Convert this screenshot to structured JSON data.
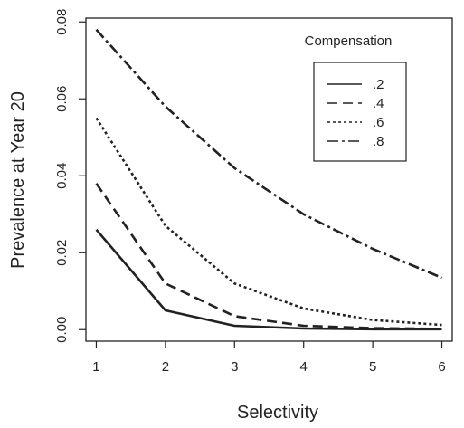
{
  "chart_data": {
    "type": "line",
    "title": "",
    "xlabel": "Selectivity",
    "ylabel": "Prevalence at Year 20",
    "x": [
      1,
      2,
      3,
      4,
      5,
      6
    ],
    "xlim": [
      0.85,
      6.15
    ],
    "ylim": [
      -0.003,
      0.081
    ],
    "xticks": [
      "1",
      "2",
      "3",
      "4",
      "5",
      "6"
    ],
    "yticks": [
      "0.00",
      "0.02",
      "0.04",
      "0.06",
      "0.08"
    ],
    "grid": false,
    "line_color": "#222222",
    "legend": {
      "title": "Compensation",
      "position": "top-right"
    },
    "series": [
      {
        "name": ".2",
        "dash": "solid",
        "values": [
          0.026,
          0.005,
          0.001,
          0.0003,
          0.0001,
          0.0001
        ]
      },
      {
        "name": ".4",
        "dash": "dashed",
        "values": [
          0.038,
          0.012,
          0.0035,
          0.001,
          0.0004,
          0.0002
        ]
      },
      {
        "name": ".6",
        "dash": "dotted",
        "values": [
          0.055,
          0.027,
          0.012,
          0.0055,
          0.0025,
          0.0012
        ]
      },
      {
        "name": ".8",
        "dash": "dashdot",
        "values": [
          0.078,
          0.058,
          0.042,
          0.03,
          0.021,
          0.0135
        ]
      }
    ]
  }
}
